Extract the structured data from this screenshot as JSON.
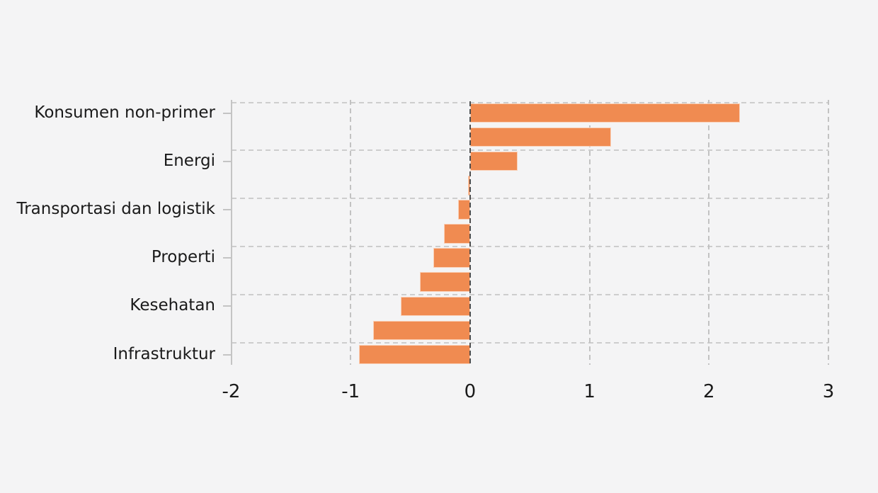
{
  "chart_data": {
    "type": "bar",
    "orientation": "horizontal",
    "title": "",
    "xlabel": "",
    "ylabel": "",
    "xlim": [
      -2,
      3
    ],
    "xticks": [
      -2,
      -1,
      0,
      1,
      2,
      3
    ],
    "xtick_labels": [
      "-2",
      "-1",
      "0",
      "1",
      "2",
      "3"
    ],
    "grid": true,
    "legend": "none",
    "bar_color": "#f08b51",
    "zero_line_color": "#4f4f4f",
    "gridline_color": "#cdcdcd",
    "axis_color": "#c4c4c4",
    "text_color": "#1a1a1a",
    "background_color": "#f4f4f5",
    "categories": [
      "Konsumen non-primer",
      "Energi",
      "Transportasi dan logistik",
      "Properti",
      "Kesehatan",
      "Infrastruktur"
    ],
    "bars": [
      {
        "label": "Konsumen non-primer",
        "value": 2.26
      },
      {
        "label": "",
        "value": 1.18
      },
      {
        "label": "Energi",
        "value": 0.4
      },
      {
        "label": "",
        "value": -0.02
      },
      {
        "label": "Transportasi dan logistik",
        "value": -0.1
      },
      {
        "label": "",
        "value": -0.22
      },
      {
        "label": "Properti",
        "value": -0.31
      },
      {
        "label": "",
        "value": -0.42
      },
      {
        "label": "Kesehatan",
        "value": -0.58
      },
      {
        "label": "",
        "value": -0.81
      },
      {
        "label": "Infrastruktur",
        "value": -0.93
      }
    ]
  }
}
